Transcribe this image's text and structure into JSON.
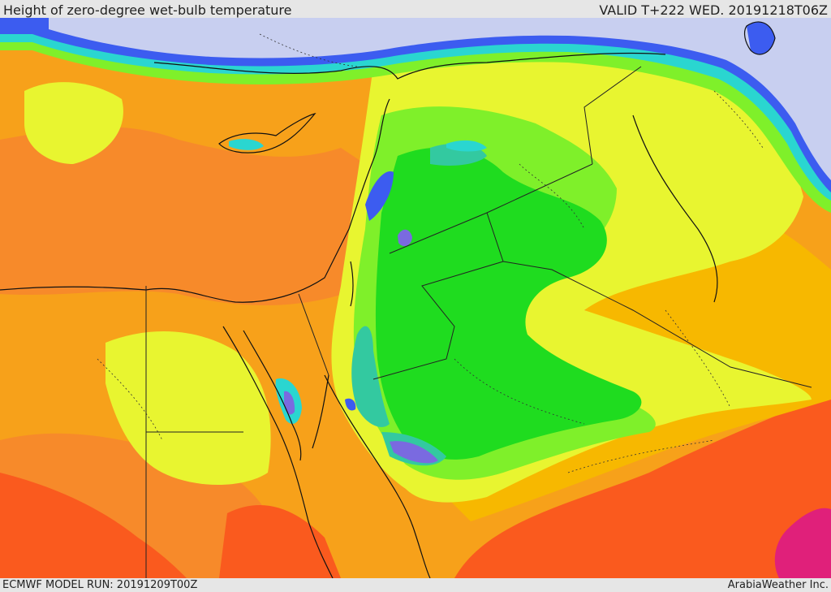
{
  "header": {
    "title": "Height of zero-degree wet-bulb temperature",
    "valid": "VALID T+222 WED. 20191218T06Z"
  },
  "footer": {
    "model_run": "ECMWF MODEL RUN: 20191209T00Z",
    "credit": "ArabiaWeather Inc."
  },
  "colors": {
    "lavender": "#c8cff0",
    "blue": "#3c5cf0",
    "purple": "#7a6ae0",
    "cyan": "#2ad6d0",
    "teal": "#33c9a0",
    "green": "#1fdc1f",
    "light_green": "#7ff02a",
    "yellow_green": "#c8f036",
    "yellow": "#e8f530",
    "amber": "#f7b800",
    "orange": "#f7a11a",
    "dark_orange": "#f78a2a",
    "red_orange": "#fa5a1e",
    "magenta": "#e0207a",
    "coastline": "#111111",
    "border": "#222222"
  }
}
